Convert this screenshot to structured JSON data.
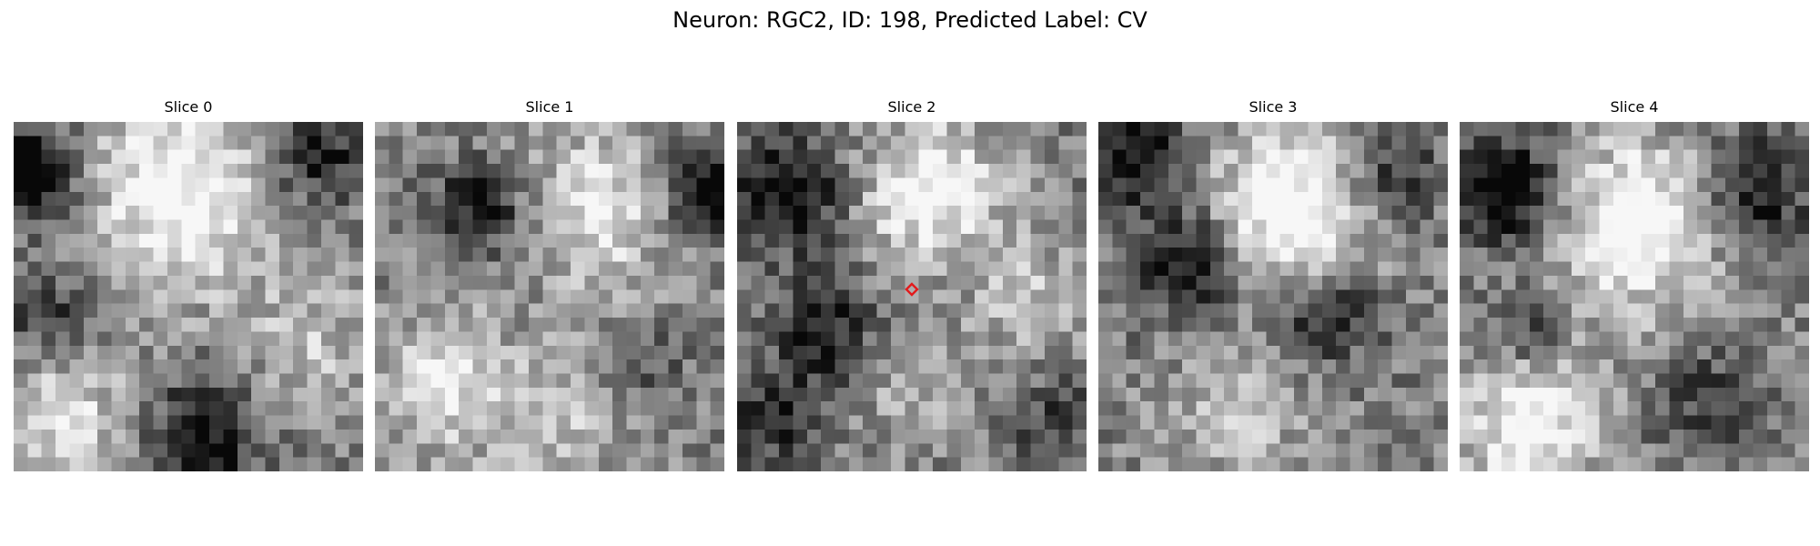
{
  "figure": {
    "title": "Neuron: RGC2, ID: 198, Predicted Label: CV"
  },
  "panels": [
    {
      "title": "Slice 0"
    },
    {
      "title": "Slice 1"
    },
    {
      "title": "Slice 2"
    },
    {
      "title": "Slice 3"
    },
    {
      "title": "Slice 4"
    }
  ],
  "marker": {
    "shape": "diamond",
    "color": "#e31a1c",
    "slice_index": 2,
    "position_in_patch": [
      0.5,
      0.5
    ]
  },
  "image": {
    "colormap": "gray",
    "grid_size": 25
  }
}
